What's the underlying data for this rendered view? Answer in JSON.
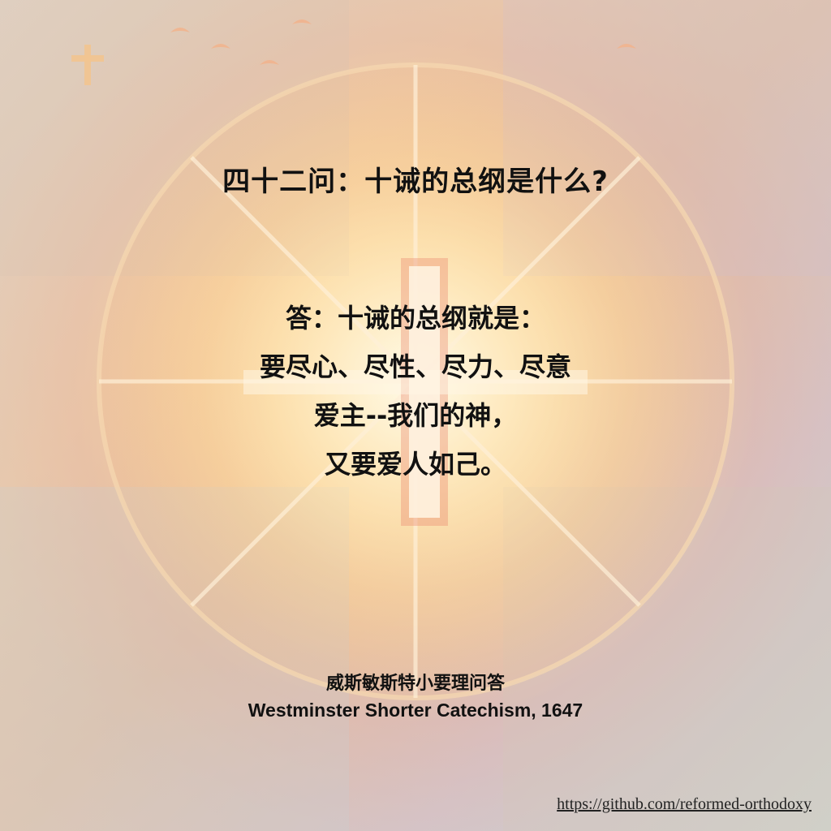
{
  "question": "四十二问：十诫的总纲是什么?",
  "answer": {
    "lines": [
      "答：十诫的总纲就是：",
      "要尽心、尽性、尽力、尽意",
      "爱主--我们的神，",
      "又要爱人如己。"
    ]
  },
  "source": {
    "chinese": "威斯敏斯特小要理问答",
    "english": "Westminster Shorter Catechism, 1647"
  },
  "link": {
    "url": "https://github.com/reformed-orthodoxy"
  },
  "colors": {
    "glow": "#fff4d6",
    "text": "#111111"
  }
}
